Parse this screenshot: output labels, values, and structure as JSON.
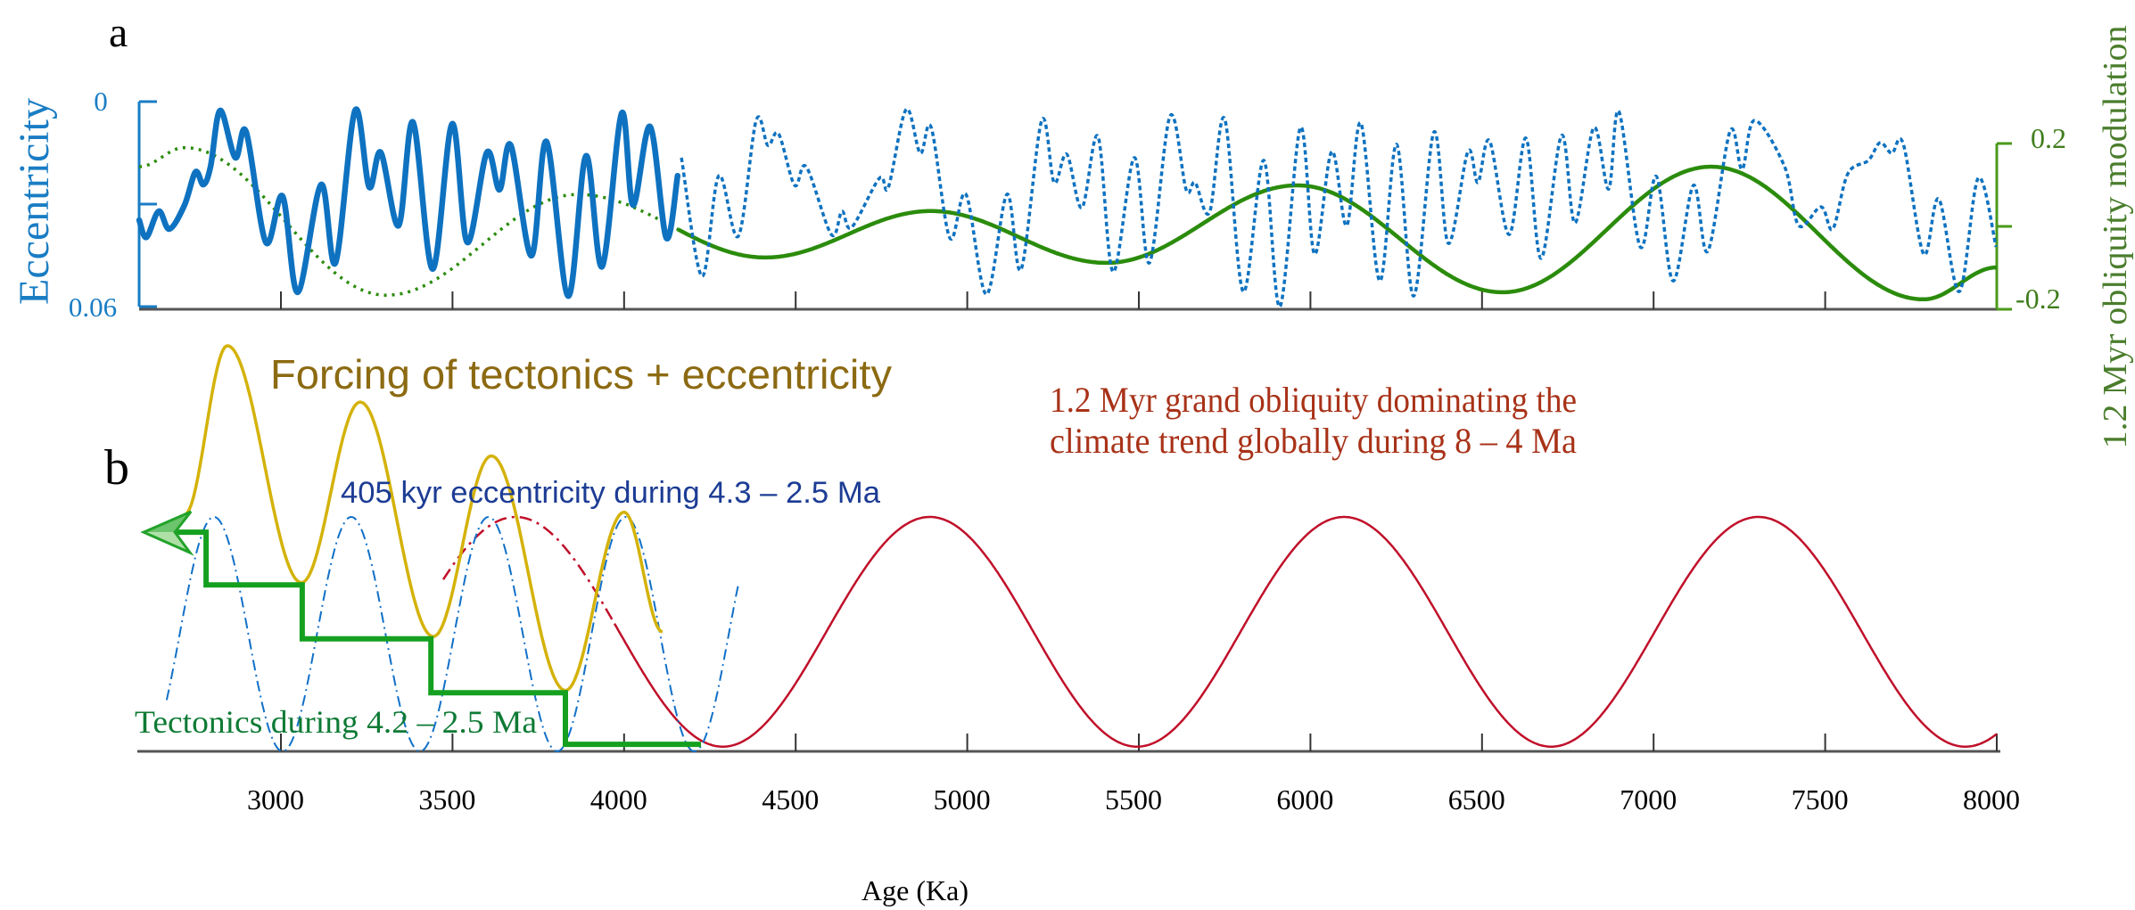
{
  "figure": {
    "panel_a_label": "a",
    "panel_b_label": "b",
    "xlabel": "Age (Ka)"
  },
  "chart_data": [
    {
      "type": "line",
      "panel_label": "a",
      "xlim": [
        2580,
        8000
      ],
      "xticks": [
        3000,
        3500,
        4000,
        4500,
        5000,
        5500,
        6000,
        6500,
        7000,
        7500
      ],
      "left_axis": {
        "label": "Eccentricity",
        "ylim": [
          0,
          0.06
        ],
        "inverted": true,
        "ticks": [
          0,
          0.03,
          0.06
        ],
        "tick_labels": [
          "0",
          "0.06"
        ],
        "color": "#1a7dc4"
      },
      "right_axis": {
        "label": "1.2 Myr obliquity modulation",
        "ylim": [
          -0.2,
          0.2
        ],
        "ticks": [
          0.2,
          0,
          -0.2
        ],
        "tick_labels": [
          "0.2",
          "-0.2"
        ],
        "color": "#3f7d1c"
      },
      "eccentricity_solid": {
        "color": "#0e72c0",
        "x": [
          2587,
          2608,
          2644,
          2675,
          2719,
          2751,
          2774,
          2795,
          2823,
          2867,
          2899,
          2956,
          3005,
          3049,
          3117,
          3159,
          3216,
          3257,
          3291,
          3343,
          3385,
          3442,
          3499,
          3543,
          3600,
          3637,
          3670,
          3730,
          3774,
          3837,
          3889,
          3936,
          3993,
          4026,
          4076,
          4123,
          4156
        ],
        "y": [
          0.0347,
          0.0397,
          0.0321,
          0.0373,
          0.0303,
          0.0206,
          0.0243,
          0.019,
          0.0026,
          0.0164,
          0.0089,
          0.0412,
          0.0277,
          0.0558,
          0.0243,
          0.0472,
          0.0026,
          0.025,
          0.0149,
          0.0363,
          0.006,
          0.049,
          0.0065,
          0.0412,
          0.0149,
          0.0258,
          0.0128,
          0.0451,
          0.0117,
          0.0569,
          0.0159,
          0.0483,
          0.0034,
          0.0303,
          0.0073,
          0.0399,
          0.0217
        ]
      },
      "eccentricity_dotted": {
        "color": "#0e72c0",
        "x": [
          4167,
          4227,
          4276,
          4333,
          4385,
          4419,
          4450,
          4497,
          4531,
          4604,
          4635,
          4663,
          4744,
          4770,
          4822,
          4863,
          4895,
          4949,
          4996,
          5056,
          5116,
          5157,
          5217,
          5253,
          5290,
          5334,
          5381,
          5425,
          5487,
          5531,
          5591,
          5638,
          5664,
          5706,
          5750,
          5804,
          5864,
          5911,
          5971,
          6012,
          6062,
          6106,
          6147,
          6202,
          6251,
          6301,
          6360,
          6402,
          6459,
          6488,
          6522,
          6579,
          6628,
          6672,
          6732,
          6771,
          6826,
          6869,
          6899,
          6961,
          7008,
          7057,
          7116,
          7158,
          7223,
          7258,
          7294,
          7382,
          7423,
          7488,
          7522,
          7566,
          7626,
          7660,
          7694,
          7728,
          7787,
          7831,
          7891,
          7946,
          7998
        ],
        "y": [
          0.0164,
          0.0511,
          0.0217,
          0.0394,
          0.0055,
          0.0128,
          0.0094,
          0.0245,
          0.0191,
          0.0389,
          0.0321,
          0.0368,
          0.0224,
          0.0251,
          0.0023,
          0.0151,
          0.0076,
          0.0399,
          0.0271,
          0.0564,
          0.0271,
          0.0491,
          0.0055,
          0.0237,
          0.0154,
          0.0311,
          0.0102,
          0.0498,
          0.0164,
          0.0472,
          0.0042,
          0.0258,
          0.0237,
          0.0324,
          0.005,
          0.0556,
          0.0172,
          0.06,
          0.0076,
          0.0446,
          0.0146,
          0.0363,
          0.0063,
          0.0525,
          0.0125,
          0.0569,
          0.0089,
          0.0415,
          0.0146,
          0.0237,
          0.0115,
          0.0389,
          0.0107,
          0.0459,
          0.0099,
          0.0355,
          0.0076,
          0.0256,
          0.0029,
          0.0425,
          0.0219,
          0.0525,
          0.0245,
          0.0438,
          0.0086,
          0.0198,
          0.0055,
          0.0191,
          0.0363,
          0.0308,
          0.0373,
          0.0211,
          0.0172,
          0.012,
          0.0151,
          0.0125,
          0.0446,
          0.0285,
          0.0556,
          0.0224,
          0.0425
        ]
      },
      "obliquity_modulation": {
        "color": "#2b8c0c",
        "dotted_before": 4157,
        "x": [
          2587,
          2719,
          3307,
          3865,
          4411,
          4894,
          5406,
          5962,
          6560,
          7168,
          7787,
          8000
        ],
        "y": [
          0.144,
          0.19,
          -0.166,
          0.077,
          -0.075,
          0.037,
          -0.088,
          0.099,
          -0.159,
          0.144,
          -0.176,
          -0.099
        ]
      }
    },
    {
      "type": "line",
      "panel_label": "b",
      "xlabel": "Age (Ka)",
      "xlim": [
        2580,
        8000
      ],
      "xticks": [
        3000,
        3500,
        4000,
        4500,
        5000,
        5500,
        6000,
        6500,
        7000,
        7500,
        8000
      ],
      "xtick_labels": [
        "3000",
        "3500",
        "4000",
        "4500",
        "5000",
        "5500",
        "6000",
        "6500",
        "7000",
        "7500",
        "8000"
      ],
      "forcing_tectonics_eccentricity": {
        "label": "Forcing of tectonics + eccentricity",
        "color": "#d4b20a",
        "label_color": "#8c6a12",
        "x": [
          2719,
          2844,
          3060,
          3231,
          3444,
          3613,
          3829,
          4000,
          4112
        ],
        "y": [
          1.01,
          1.73,
          0.72,
          1.49,
          0.49,
          1.26,
          0.26,
          1.02,
          0.51
        ]
      },
      "eccentricity_405kyr": {
        "label": "405 kyr eccentricity during 4.3 – 2.5 Ma",
        "color": "#1170c8",
        "label_color": "#1c3c94",
        "period": 400,
        "peak_age": 4005,
        "range": [
          2667,
          4333
        ],
        "min": 0,
        "max": 1
      },
      "grand_obliquity_1_2myr": {
        "label_lines": [
          "1.2 Myr grand obliquity dominating the",
          "climate trend globally during 8 – 4 Ma"
        ],
        "color": "#c0102a",
        "label_color": "#a83218",
        "period": 1207,
        "peak_age": 6098,
        "range": [
          3473,
          8000
        ],
        "dashed_before": 3972,
        "min": 0.02,
        "max": 1.0
      },
      "tectonics": {
        "label": "Tectonics during 4.2 – 2.5 Ma",
        "color": "#15a020",
        "label_color": "#0e7a35",
        "x": [
          2600,
          2782,
          3062,
          3437,
          3829,
          4224
        ],
        "levels": [
          0.935,
          0.71,
          0.48,
          0.25,
          0.03
        ]
      }
    }
  ]
}
